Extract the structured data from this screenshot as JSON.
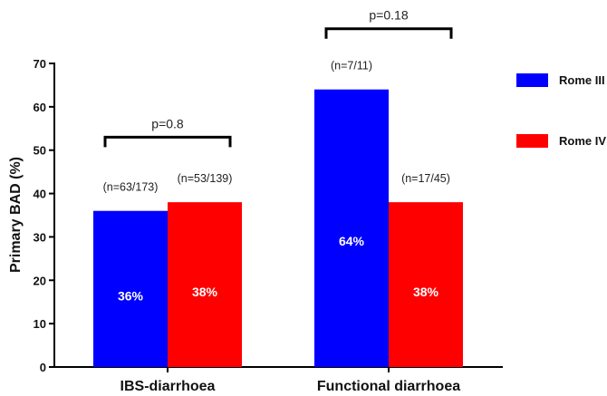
{
  "chart_data": {
    "type": "bar",
    "ylabel": "Primary BAD (%)",
    "xlabel": "",
    "ylim": [
      0,
      70
    ],
    "yticks": [
      0,
      10,
      20,
      30,
      40,
      50,
      60,
      70
    ],
    "grid": false,
    "legend_position": "right",
    "categories": [
      "IBS-diarrhoea",
      "Functional diarrhoea"
    ],
    "series": [
      {
        "name": "Rome III",
        "color": "#0000ff",
        "values": [
          36,
          64
        ],
        "value_labels": [
          "36%",
          "64%"
        ],
        "n_labels": [
          "(n=63/173)",
          "(n=7/11)"
        ]
      },
      {
        "name": "Rome IV",
        "color": "#ff0000",
        "values": [
          38,
          38
        ],
        "value_labels": [
          "38%",
          "38%"
        ],
        "n_labels": [
          "(n=53/139)",
          "(n=17/45)"
        ]
      }
    ],
    "comparisons": [
      {
        "category": "IBS-diarrhoea",
        "label": "p=0.8",
        "bracket_at": 53
      },
      {
        "category": "Functional diarrhoea",
        "label": "p=0.18",
        "bracket_at": 78
      }
    ]
  }
}
